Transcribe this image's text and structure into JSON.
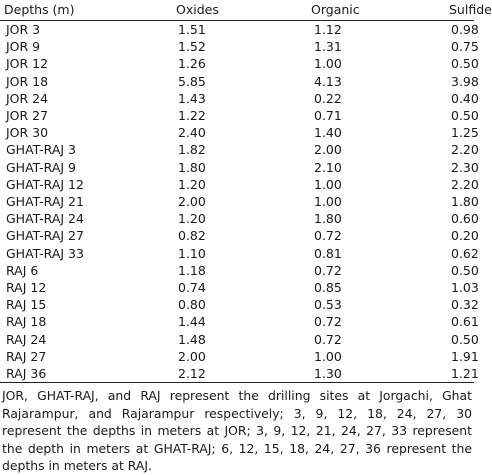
{
  "table": {
    "headers": [
      "Depths (m)",
      "Oxides",
      "Organic",
      "Sulfide"
    ],
    "rows": [
      [
        "JOR 3",
        "1.51",
        "1.12",
        "0.98"
      ],
      [
        "JOR 9",
        "1.52",
        "1.31",
        "0.75"
      ],
      [
        "JOR 12",
        "1.26",
        "1.00",
        "0.50"
      ],
      [
        "JOR 18",
        "5.85",
        "4.13",
        "3.98"
      ],
      [
        "JOR 24",
        "1.43",
        "0.22",
        "0.40"
      ],
      [
        "JOR 27",
        "1.22",
        "0.71",
        "0.50"
      ],
      [
        "JOR 30",
        "2.40",
        "1.40",
        "1.25"
      ],
      [
        "GHAT-RAJ 3",
        "1.82",
        "2.00",
        "2.20"
      ],
      [
        "GHAT-RAJ 9",
        "1.80",
        "2.10",
        "2.30"
      ],
      [
        "GHAT-RAJ 12",
        "1.20",
        "1.00",
        "2.20"
      ],
      [
        "GHAT-RAJ 21",
        "2.00",
        "1.00",
        "1.80"
      ],
      [
        "GHAT-RAJ 24",
        "1.20",
        "1.80",
        "0.60"
      ],
      [
        "GHAT-RAJ 27",
        "0.82",
        "0.72",
        "0.20"
      ],
      [
        "GHAT-RAJ 33",
        "1.10",
        "0.81",
        "0.62"
      ],
      [
        "RAJ 6",
        "1.18",
        "0.72",
        "0.50"
      ],
      [
        "RAJ 12",
        "0.74",
        "0.85",
        "1.03"
      ],
      [
        "RAJ 15",
        "0.80",
        "0.53",
        "0.32"
      ],
      [
        "RAJ 18",
        "1.44",
        "0.72",
        "0.61"
      ],
      [
        "RAJ 24",
        "1.48",
        "0.72",
        "0.50"
      ],
      [
        "RAJ 27",
        "2.00",
        "1.00",
        "1.91"
      ],
      [
        "RAJ 36",
        "2.12",
        "1.30",
        "1.21"
      ]
    ]
  },
  "footnote": "JOR, GHAT-RAJ, and RAJ represent the drilling sites at Jorgachi, Ghat Rajarampur, and Rajarampur respectively; 3, 9, 12, 18, 24, 27, 30 represent the depths in meters at JOR; 3, 9, 12, 21, 24, 27, 33 represent the depth in meters at GHAT-RAJ; 6, 12, 15, 18, 24, 27, 36 represent the depths in meters at RAJ."
}
